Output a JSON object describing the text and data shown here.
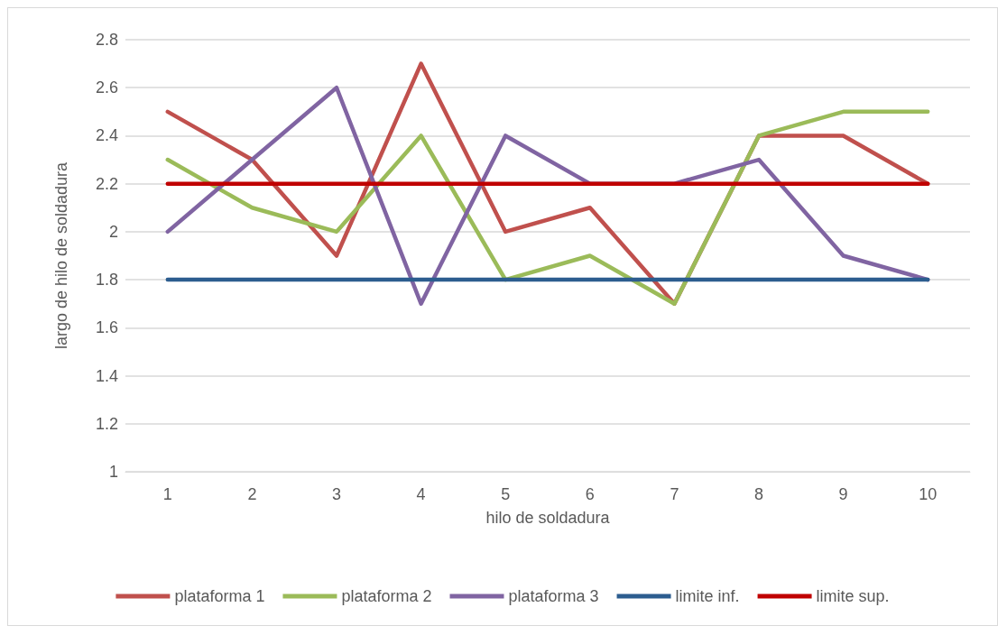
{
  "chart_data": {
    "type": "line",
    "xlabel": "hilo de soldadura",
    "ylabel": "largo de hilo de soldadura",
    "categories": [
      "1",
      "2",
      "3",
      "4",
      "5",
      "6",
      "7",
      "8",
      "9",
      "10"
    ],
    "series": [
      {
        "name": "plataforma 1",
        "color": "#c0504d",
        "values": [
          2.5,
          2.3,
          1.9,
          2.7,
          2.0,
          2.1,
          1.7,
          2.4,
          2.4,
          2.2
        ]
      },
      {
        "name": "plataforma 2",
        "color": "#9bbb59",
        "values": [
          2.3,
          2.1,
          2.0,
          2.4,
          1.8,
          1.9,
          1.7,
          2.4,
          2.5,
          2.5
        ]
      },
      {
        "name": "plataforma 3",
        "color": "#8064a2",
        "values": [
          2.0,
          2.3,
          2.6,
          1.7,
          2.4,
          2.2,
          2.2,
          2.3,
          1.9,
          1.8
        ]
      },
      {
        "name": "limite inf.",
        "color": "#2c5d8f",
        "values": [
          1.8,
          1.8,
          1.8,
          1.8,
          1.8,
          1.8,
          1.8,
          1.8,
          1.8,
          1.8
        ]
      },
      {
        "name": "limite sup.",
        "color": "#c00000",
        "values": [
          2.2,
          2.2,
          2.2,
          2.2,
          2.2,
          2.2,
          2.2,
          2.2,
          2.2,
          2.2
        ]
      }
    ],
    "ylim": [
      1,
      2.8
    ],
    "yticks": [
      1,
      1.2,
      1.4,
      1.6,
      1.8,
      2,
      2.2,
      2.4,
      2.6,
      2.8
    ],
    "grid": "y",
    "legend": "bottom",
    "marker": "none",
    "line_style": "solid"
  }
}
